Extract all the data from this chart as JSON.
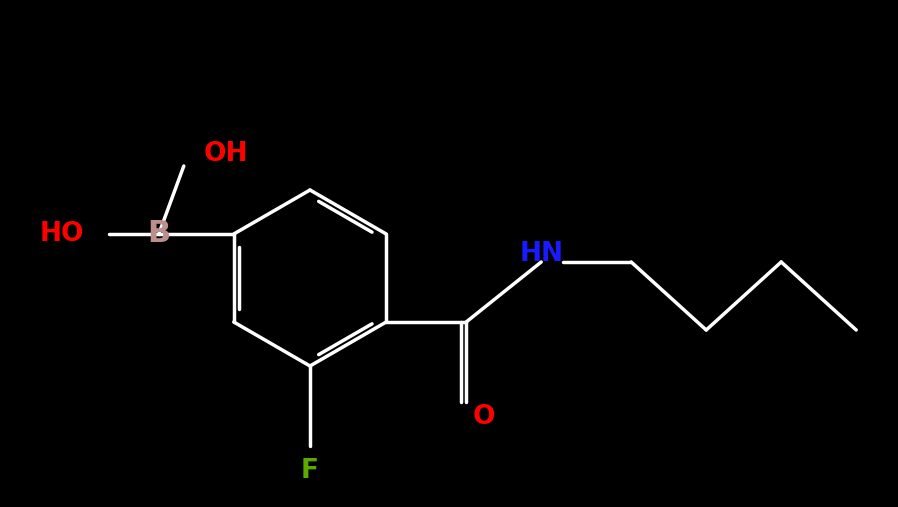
{
  "background_color": "#000000",
  "bond_color": "#ffffff",
  "bond_width": 2.5,
  "figsize": [
    8.98,
    5.07
  ],
  "dpi": 100,
  "colors": {
    "OH": "#ff0000",
    "HO": "#ff0000",
    "B": "#bc8f8f",
    "HN": "#1a1aff",
    "O": "#ff0000",
    "F": "#5aaa00"
  },
  "font_size": 19
}
